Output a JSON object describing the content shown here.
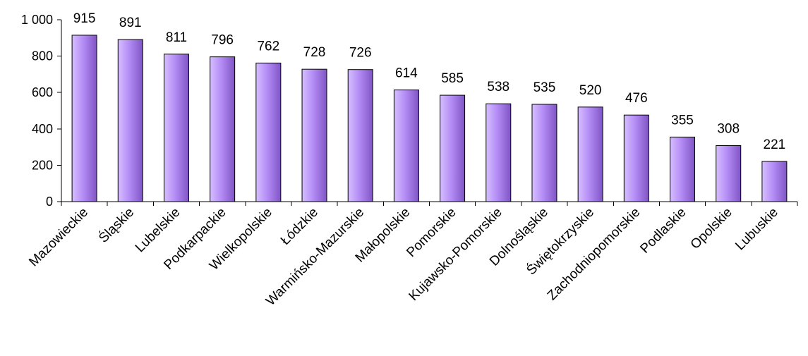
{
  "colors": {
    "bar_fill_light": "#d6bfff",
    "bar_fill_mid": "#b48cf5",
    "bar_fill_dark": "#7f55c4",
    "axis": "#000000",
    "background": "#ffffff"
  },
  "chart_data": {
    "type": "bar",
    "title": "",
    "xlabel": "",
    "ylabel": "",
    "ylim": [
      0,
      1000
    ],
    "yticks": [
      0,
      200,
      400,
      600,
      800,
      1000
    ],
    "ytick_labels": [
      "0",
      "200",
      "400",
      "600",
      "800",
      "1 000"
    ],
    "grid": false,
    "legend": "none",
    "categories": [
      "Mazowieckie",
      "Śląskie",
      "Lubelskie",
      "Podkarpackie",
      "Wielkopolskie",
      "Łódzkie",
      "Warmińsko-Mazurskie",
      "Małopolskie",
      "Pomorskie",
      "Kujawsko-Pomorskie",
      "Dolnośląskie",
      "Świętokrzyskie",
      "Zachodniopomorskie",
      "Podlaskie",
      "Opolskie",
      "Lubuskie"
    ],
    "values": [
      915,
      891,
      811,
      796,
      762,
      728,
      726,
      614,
      585,
      538,
      535,
      520,
      476,
      355,
      308,
      221
    ],
    "data_labels": [
      "915",
      "891",
      "811",
      "796",
      "762",
      "728",
      "726",
      "614",
      "585",
      "538",
      "535",
      "520",
      "476",
      "355",
      "308",
      "221"
    ]
  }
}
